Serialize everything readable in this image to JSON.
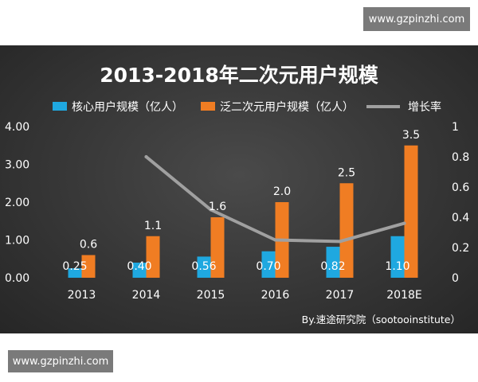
{
  "watermarks": {
    "top": "www.gzpinzhi.com",
    "bottom": "www.gzpinzhi.com"
  },
  "chart_data": {
    "type": "bar",
    "title": "2013-2018年二次元用户规模",
    "categories": [
      "2013",
      "2014",
      "2015",
      "2016",
      "2017",
      "2018E"
    ],
    "series": [
      {
        "name": "核心用户规模（亿人）",
        "type": "bar",
        "axis": "left",
        "color": "#1fa8e0",
        "values": [
          0.25,
          0.4,
          0.56,
          0.7,
          0.82,
          1.1
        ],
        "labels": [
          "0.25",
          "0.40",
          "0.56",
          "0.70",
          "0.82",
          "1.10"
        ]
      },
      {
        "name": "泛二次元用户规模（亿人）",
        "type": "bar",
        "axis": "left",
        "color": "#f07d23",
        "values": [
          0.6,
          1.1,
          1.6,
          2.0,
          2.5,
          3.5
        ],
        "labels": [
          "0.6",
          "1.1",
          "1.6",
          "2.0",
          "2.5",
          "3.5"
        ]
      },
      {
        "name": "增长率",
        "type": "line",
        "axis": "right",
        "color": "#a0a0a0",
        "values": [
          null,
          0.8,
          0.45,
          0.25,
          0.24,
          0.36
        ]
      }
    ],
    "y_left": {
      "ylim": [
        0,
        4
      ],
      "ticks": [
        "0.00",
        "1.00",
        "2.00",
        "3.00",
        "4.00"
      ]
    },
    "y_right": {
      "ylim": [
        0,
        1
      ],
      "ticks": [
        "0",
        "0.2",
        "0.4",
        "0.6",
        "0.8",
        "1"
      ]
    },
    "grid": false,
    "legend": "top",
    "source": "By.速途研究院（sootooinstitute）"
  }
}
